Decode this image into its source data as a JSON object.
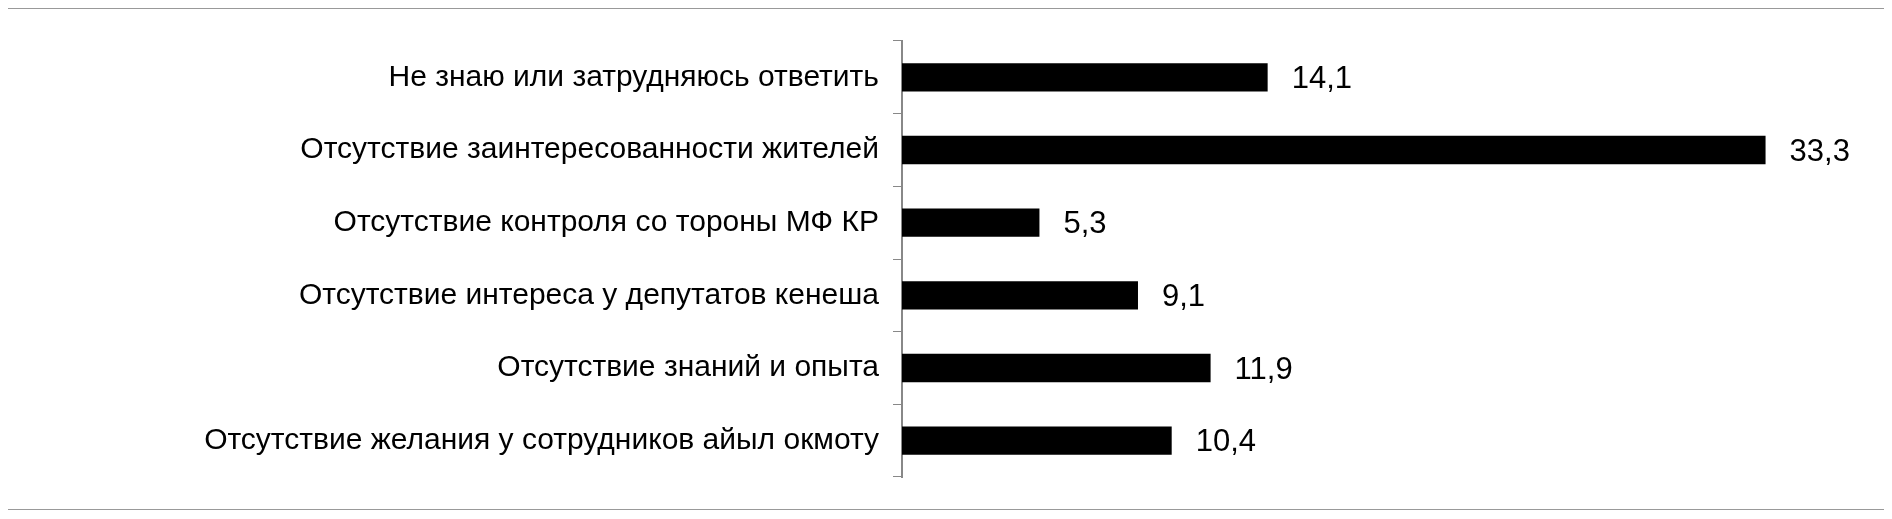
{
  "chart_data": {
    "type": "bar",
    "orientation": "horizontal",
    "categories": [
      "Не знаю или затрудняюсь ответить",
      "Отсутствие заинтересованности жителей",
      "Отсутствие контроля со тороны МФ КР",
      "Отсутствие интереса у депутатов кенеша",
      "Отсутствие знаний и опыта",
      "Отсутствие желания у сотрудников айыл окмоту"
    ],
    "values": [
      14.1,
      33.3,
      5.3,
      9.1,
      11.9,
      10.4
    ],
    "value_labels": [
      "14,1",
      "33,3",
      "5,3",
      "9,1",
      "11,9",
      "10,4"
    ],
    "color": "#000000",
    "legend": false
  }
}
